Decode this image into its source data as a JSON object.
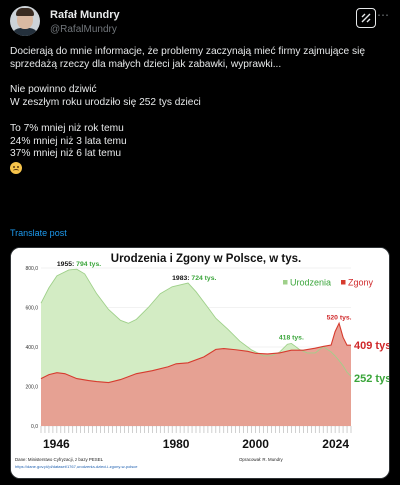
{
  "author": {
    "name": "Rafał Mundry",
    "handle": "@RafalMundry"
  },
  "tweet": {
    "paragraphs": [
      "Docierają do mnie informacje, że problemy zaczynają mieć firmy zajmujące się sprzedażą rzeczy dla małych dzieci jak zabawki, wyprawki...",
      "Nie powinno dziwić\nW zeszłym roku urodziło się 252 tys dzieci",
      "To 7% mniej niż rok temu\n24% mniej niż 3 lata temu\n37% mniej niż 6 lat temu"
    ],
    "emoji": "disappointed-face"
  },
  "translate_label": "Translate post",
  "colors": {
    "births_fill": "#d3ecc4",
    "births_line": "#9fd08a",
    "deaths_fill": "#e79a8e",
    "deaths_line": "#d63b2e",
    "births_label": "#3aa53a",
    "deaths_label": "#d0282a",
    "link_blue": "#1d9bf0"
  },
  "chart_data": {
    "type": "area",
    "title": "Urodzenia i Zgony w Polsce, w tys.",
    "ylim": [
      0,
      800
    ],
    "yticks": [
      "0,0",
      "200,0",
      "400,0",
      "600,0",
      "800,0"
    ],
    "x_milestones": [
      "1946",
      "1980",
      "2000",
      "2024"
    ],
    "legend": [
      "Urodzenia",
      "Zgony"
    ],
    "legend_position": "top-right",
    "series": [
      {
        "name": "Urodzenia",
        "points": [
          [
            1946,
            622
          ],
          [
            1948,
            700
          ],
          [
            1950,
            760
          ],
          [
            1953,
            790
          ],
          [
            1955,
            794
          ],
          [
            1957,
            770
          ],
          [
            1960,
            670
          ],
          [
            1963,
            590
          ],
          [
            1966,
            535
          ],
          [
            1968,
            520
          ],
          [
            1970,
            540
          ],
          [
            1973,
            600
          ],
          [
            1976,
            670
          ],
          [
            1979,
            705
          ],
          [
            1983,
            724
          ],
          [
            1985,
            680
          ],
          [
            1988,
            600
          ],
          [
            1990,
            545
          ],
          [
            1993,
            490
          ],
          [
            1996,
            430
          ],
          [
            1999,
            385
          ],
          [
            2002,
            355
          ],
          [
            2004,
            356
          ],
          [
            2006,
            374
          ],
          [
            2008,
            414
          ],
          [
            2009,
            418
          ],
          [
            2011,
            388
          ],
          [
            2013,
            370
          ],
          [
            2015,
            370
          ],
          [
            2017,
            402
          ],
          [
            2019,
            375
          ],
          [
            2020,
            355
          ],
          [
            2021,
            331
          ],
          [
            2022,
            305
          ],
          [
            2023,
            272
          ],
          [
            2024,
            252
          ]
        ]
      },
      {
        "name": "Zgony",
        "points": [
          [
            1946,
            240
          ],
          [
            1948,
            260
          ],
          [
            1950,
            270
          ],
          [
            1952,
            265
          ],
          [
            1955,
            240
          ],
          [
            1958,
            230
          ],
          [
            1960,
            225
          ],
          [
            1963,
            220
          ],
          [
            1966,
            235
          ],
          [
            1970,
            265
          ],
          [
            1974,
            280
          ],
          [
            1978,
            300
          ],
          [
            1980,
            315
          ],
          [
            1983,
            320
          ],
          [
            1987,
            350
          ],
          [
            1990,
            388
          ],
          [
            1992,
            392
          ],
          [
            1995,
            386
          ],
          [
            1998,
            378
          ],
          [
            2000,
            368
          ],
          [
            2003,
            365
          ],
          [
            2006,
            370
          ],
          [
            2009,
            384
          ],
          [
            2012,
            384
          ],
          [
            2015,
            394
          ],
          [
            2017,
            403
          ],
          [
            2019,
            410
          ],
          [
            2020,
            478
          ],
          [
            2021,
            520
          ],
          [
            2022,
            449
          ],
          [
            2023,
            409
          ],
          [
            2024,
            409
          ]
        ]
      }
    ],
    "annotations": [
      {
        "year": 1955,
        "label": "1955:",
        "value_label": "794 tys."
      },
      {
        "year": 1983,
        "label": "1983:",
        "value_label": "724 tys."
      },
      {
        "year": 2009,
        "label": "",
        "value_label": "418 tys."
      },
      {
        "year": 2021,
        "label": "",
        "value_label": "520 tys."
      }
    ],
    "end_labels": {
      "deaths": "409 tys.",
      "births": "252 tys."
    },
    "source_left": "Dane: Ministerstwo Cyfryzacji, z bazy PESEL",
    "source_right": "Opracował: R. Mundry",
    "source_url": "https://dane.gov.pl/pl/dataset/1767,urodzenia-dzieci-i-zgony-w-polsce"
  }
}
